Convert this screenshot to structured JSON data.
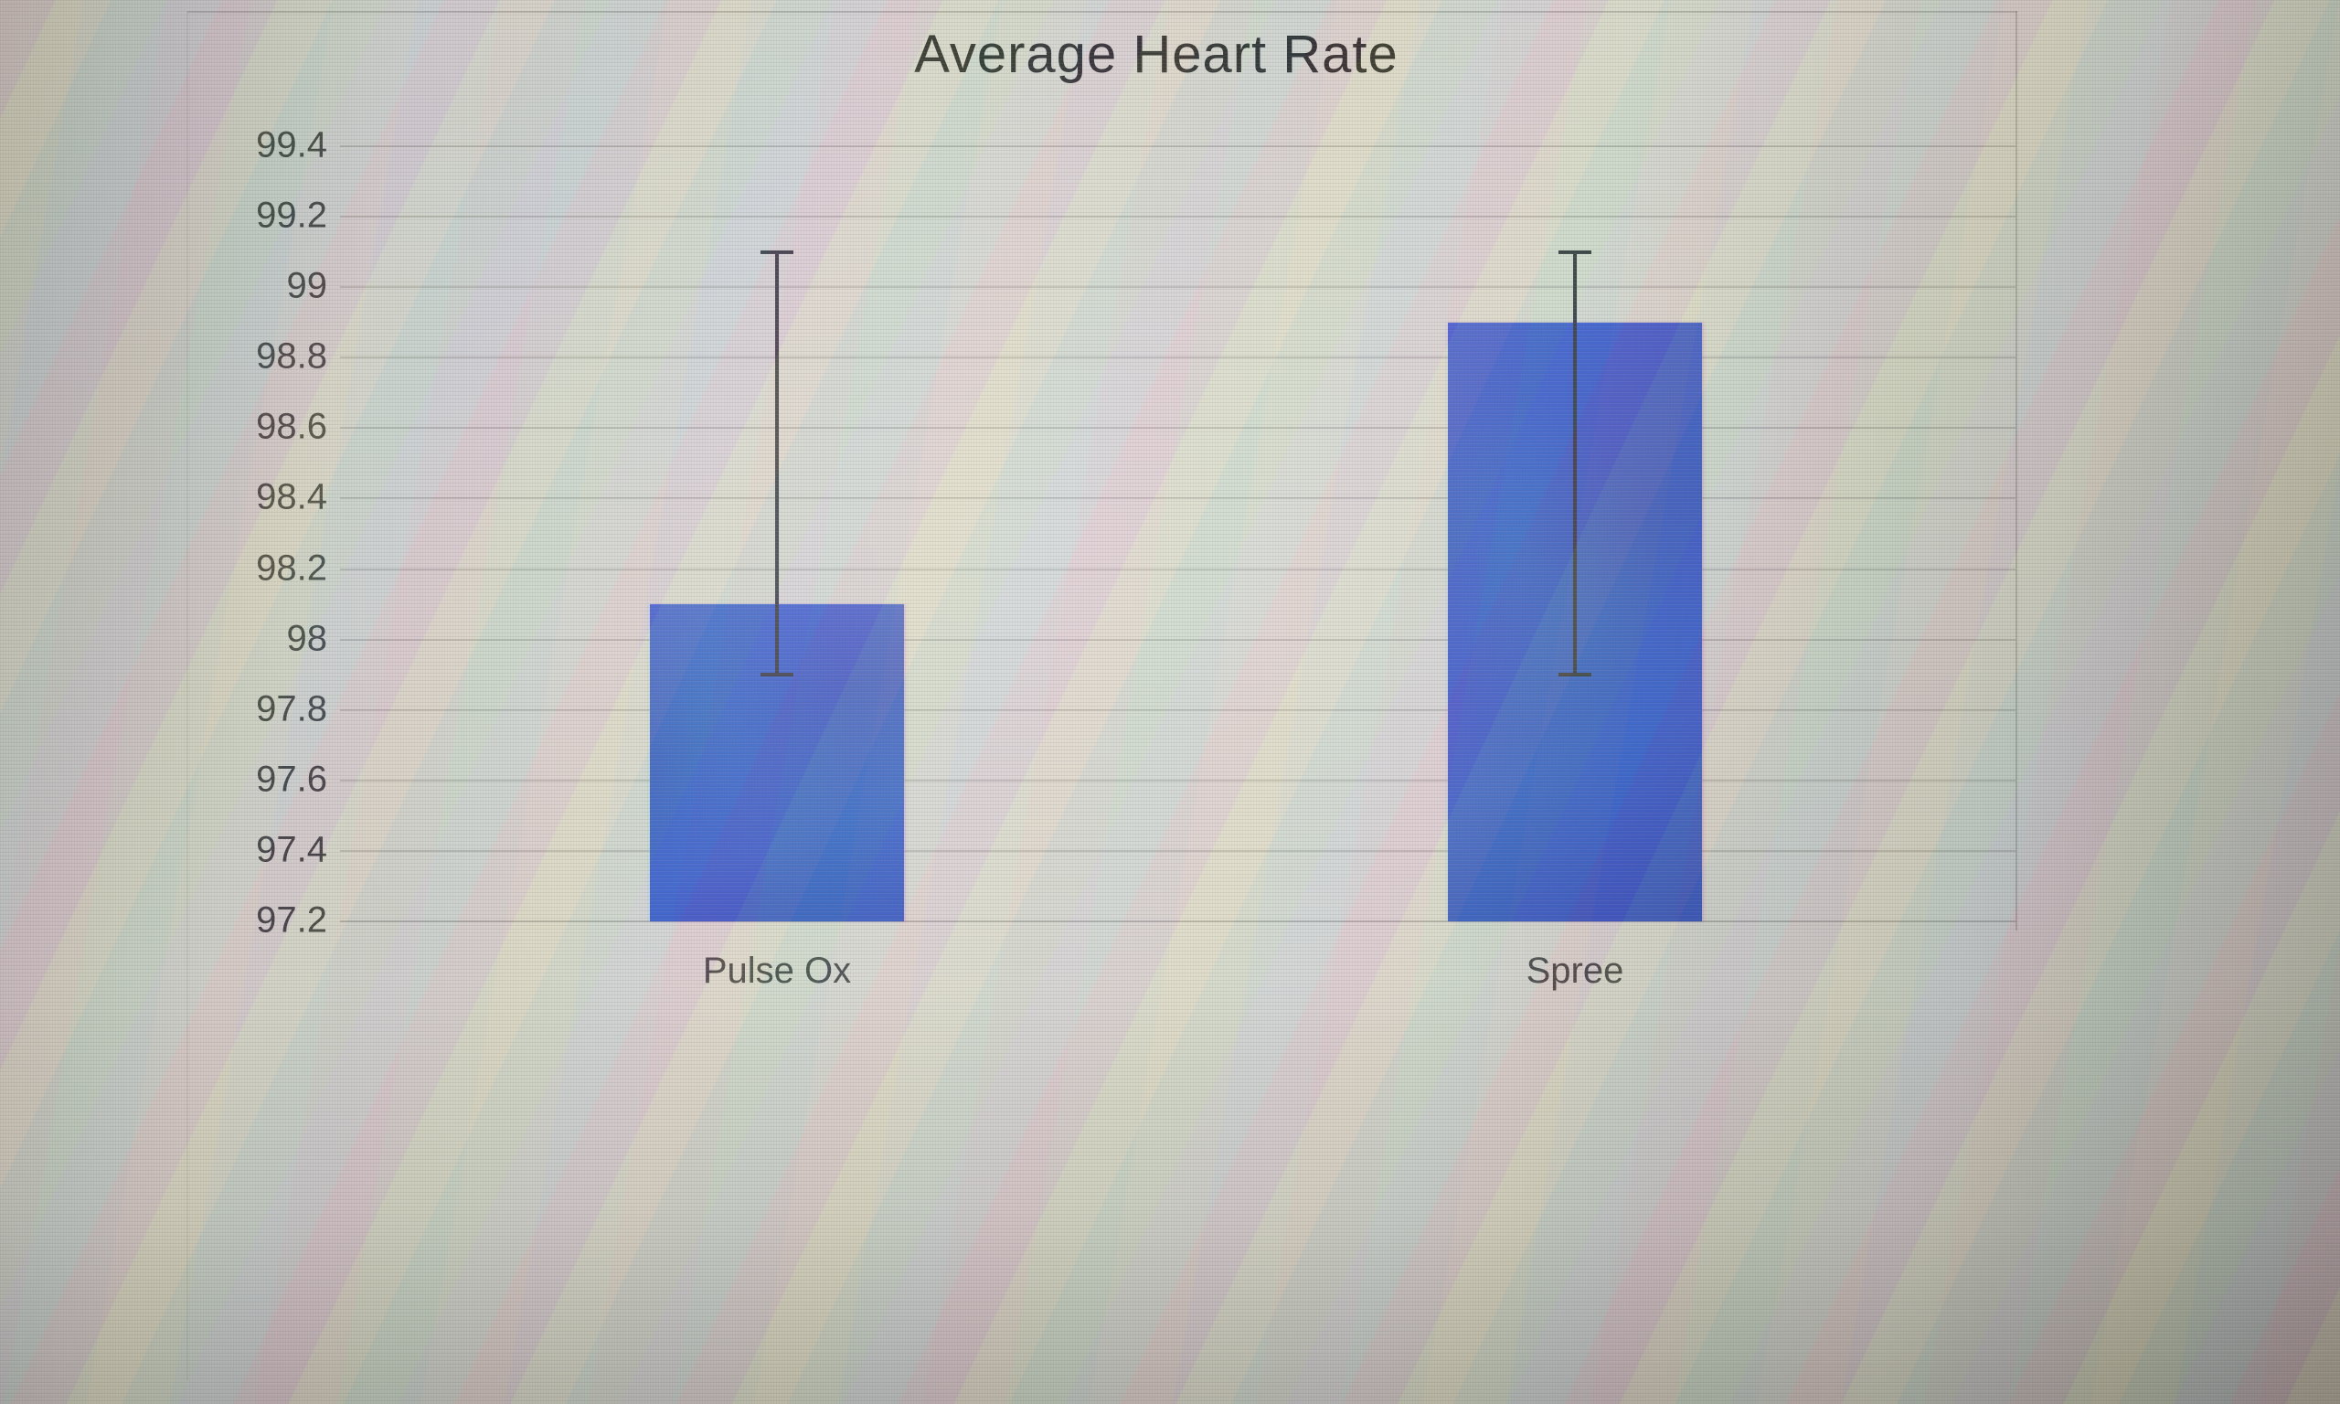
{
  "chart_data": {
    "type": "bar",
    "title": "Average Heart Rate",
    "categories": [
      "Pulse Ox",
      "Spree"
    ],
    "values": [
      98.1,
      98.9
    ],
    "error_bars": {
      "high": [
        99.1,
        99.1
      ],
      "low": [
        97.9,
        97.9
      ]
    },
    "y_axis": {
      "min": 97.2,
      "max": 99.4,
      "step": 0.2,
      "tick_labels": [
        "99.4",
        "99.2",
        "99",
        "98.8",
        "98.6",
        "98.4",
        "98.2",
        "98",
        "97.8",
        "97.6",
        "97.4",
        "97.2"
      ]
    },
    "x_axis": {
      "labels": [
        "Pulse Ox",
        "Spree"
      ]
    },
    "grid": true,
    "legend": "none",
    "colors": {
      "bar": "#2b49c6",
      "gridline": "#a9a7a2",
      "title_text": "#1c1c1c",
      "axis_text": "#333333",
      "error_bar": "#23242c"
    }
  }
}
